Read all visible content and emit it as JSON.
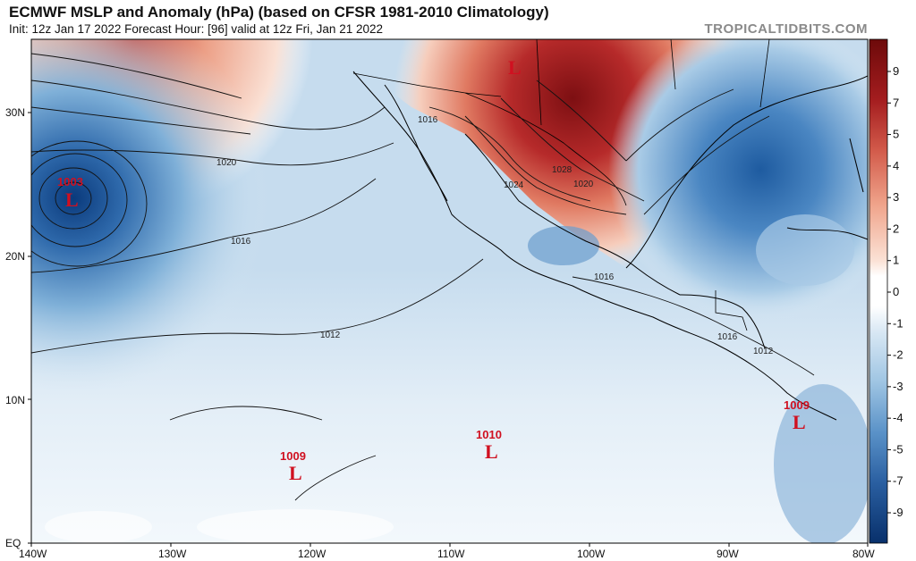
{
  "header": {
    "title": "ECMWF MSLP and Anomaly (hPa) (based on CFSR 1981-2010 Climatology)",
    "subtitle": "Init: 12z Jan 17 2022   Forecast Hour: [96]   valid at 12z Fri, Jan 21 2022",
    "credit": "TROPICALTIDBITS.COM"
  },
  "map": {
    "lon_ticks": [
      "140W",
      "130W",
      "120W",
      "110W",
      "100W",
      "90W",
      "80W"
    ],
    "lat_ticks": [
      "EQ",
      "10N",
      "20N",
      "30N"
    ],
    "lows": [
      {
        "pressure": "1003",
        "symbol": "L"
      },
      {
        "pressure": "1009",
        "symbol": "L"
      },
      {
        "pressure": "1010",
        "symbol": "L"
      },
      {
        "pressure": "1009",
        "symbol": "L"
      }
    ],
    "highs": [
      {
        "symbol": "L"
      }
    ],
    "isobar_labels": [
      "1020",
      "1016",
      "1012",
      "1016",
      "1024",
      "1028",
      "1020",
      "1016",
      "1016",
      "1012"
    ]
  },
  "colorbar": {
    "labels": [
      "9",
      "7",
      "5",
      "4",
      "3",
      "2",
      "1",
      "0",
      "-1",
      "-2",
      "-3",
      "-4",
      "-5",
      "-7",
      "-9"
    ],
    "colors": {
      "pos_high": "#6d0a0a",
      "pos_mid": "#c93a3a",
      "pos_low": "#f1b6a0",
      "zero": "#ffffff",
      "neg_low": "#c9dff0",
      "neg_mid": "#4f86c0",
      "neg_high": "#08306b"
    }
  }
}
